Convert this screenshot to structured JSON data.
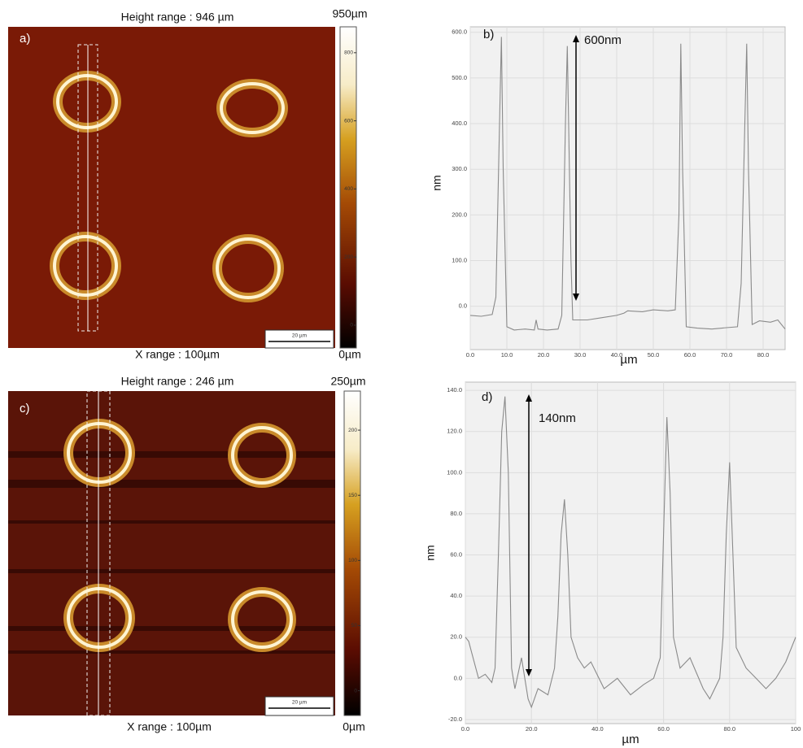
{
  "chart_data": [
    {
      "type": "image",
      "panel_label": "a)",
      "title": "Height range : 946 µm",
      "colorbar_max_label": "950µm",
      "colorbar_min_label": "0µm",
      "xlabel": "X range : 100µm",
      "scalebar_label": "20 µm",
      "clim": [
        -67,
        876
      ],
      "cticks": [
        0,
        200,
        400,
        600,
        800
      ]
    },
    {
      "type": "line",
      "panel_label": "b)",
      "annotation": "600nm",
      "xlabel": "µm",
      "ylabel": "nm",
      "grid": true,
      "color": "#8a8a8a",
      "xlim": [
        0,
        86
      ],
      "xticks": [
        {
          "value": 0,
          "label": "0.0"
        },
        {
          "value": 10,
          "label": "10.0"
        },
        {
          "value": 20,
          "label": "20.0"
        },
        {
          "value": 30,
          "label": "30.0"
        },
        {
          "value": 40,
          "label": "40.0"
        },
        {
          "value": 50,
          "label": "50.0"
        },
        {
          "value": 60,
          "label": "60.0"
        },
        {
          "value": 70,
          "label": "70.0"
        },
        {
          "value": 80,
          "label": "80.0"
        }
      ],
      "ylim": [
        -95,
        612
      ],
      "yticks": [
        {
          "value": 0,
          "label": "0.0"
        },
        {
          "value": 100,
          "label": "100.0"
        },
        {
          "value": 200,
          "label": "200.0"
        },
        {
          "value": 300,
          "label": "300.0"
        },
        {
          "value": 400,
          "label": "400.0"
        },
        {
          "value": 500,
          "label": "500.0"
        },
        {
          "value": 600,
          "label": "600.0"
        }
      ],
      "x": [
        0,
        3,
        6,
        7,
        8,
        8.5,
        9,
        10,
        12,
        15,
        17.5,
        18,
        18.5,
        21,
        24,
        25,
        26,
        26.5,
        27.5,
        28,
        32,
        36,
        40,
        42,
        43,
        47,
        50,
        54,
        56,
        57,
        57.5,
        58,
        59,
        62,
        66,
        70,
        73,
        74,
        75,
        75.5,
        76,
        77,
        79,
        82,
        84,
        86
      ],
      "values": [
        -20,
        -22,
        -18,
        20,
        400,
        590,
        300,
        -45,
        -52,
        -50,
        -52,
        -30,
        -50,
        -52,
        -50,
        -20,
        400,
        570,
        100,
        -30,
        -30,
        -25,
        -20,
        -15,
        -10,
        -12,
        -8,
        -10,
        -8,
        200,
        575,
        300,
        -45,
        -48,
        -50,
        -47,
        -45,
        50,
        400,
        575,
        300,
        -40,
        -32,
        -35,
        -30,
        -50
      ]
    },
    {
      "type": "image",
      "panel_label": "c)",
      "title": "Height range : 246 µm",
      "colorbar_max_label": "250µm",
      "colorbar_min_label": "0µm",
      "xlabel": "X range : 100µm",
      "scalebar_label": "20 µm",
      "clim": [
        -19,
        230
      ],
      "cticks": [
        0,
        50,
        100,
        150,
        200
      ]
    },
    {
      "type": "line",
      "panel_label": "d)",
      "annotation": "140nm",
      "xlabel": "µm",
      "ylabel": "nm",
      "grid": true,
      "color": "#8a8a8a",
      "xlim": [
        0,
        100
      ],
      "xticks": [
        {
          "value": 0,
          "label": "0.0"
        },
        {
          "value": 20,
          "label": "20.0"
        },
        {
          "value": 40,
          "label": "40.0"
        },
        {
          "value": 60,
          "label": "60.0"
        },
        {
          "value": 80,
          "label": "80.0"
        },
        100
      ],
      "ylim": [
        -22,
        144
      ],
      "yticks": [
        {
          "value": -20,
          "label": "-20.0"
        },
        {
          "value": 0,
          "label": "0.0"
        },
        {
          "value": 20,
          "label": "20.0"
        },
        {
          "value": 40,
          "label": "40.0"
        },
        {
          "value": 60,
          "label": "60.0"
        },
        {
          "value": 80,
          "label": "80.0"
        },
        {
          "value": 100,
          "label": "100.0"
        },
        {
          "value": 120,
          "label": "120.0"
        },
        {
          "value": 140,
          "label": "140.0"
        }
      ],
      "x": [
        0,
        1,
        2,
        4,
        6,
        8,
        9,
        10,
        11,
        12,
        13,
        14,
        15,
        17,
        19,
        20,
        22,
        25,
        27,
        28,
        29,
        30,
        31,
        32,
        34,
        36,
        38,
        42,
        46,
        50,
        54,
        57,
        59,
        60,
        61,
        62,
        63,
        65,
        68,
        72,
        74,
        77,
        78,
        79,
        80,
        81,
        82,
        85,
        88,
        91,
        94,
        97,
        100
      ],
      "values": [
        20,
        18,
        12,
        0,
        2,
        -2,
        5,
        60,
        120,
        137,
        100,
        5,
        -5,
        10,
        -10,
        -14,
        -5,
        -8,
        5,
        30,
        70,
        87,
        60,
        20,
        10,
        5,
        8,
        -5,
        0,
        -8,
        -3,
        0,
        10,
        70,
        127,
        90,
        20,
        5,
        10,
        -5,
        -10,
        0,
        20,
        70,
        105,
        60,
        15,
        5,
        0,
        -5,
        0,
        8,
        20
      ]
    }
  ]
}
